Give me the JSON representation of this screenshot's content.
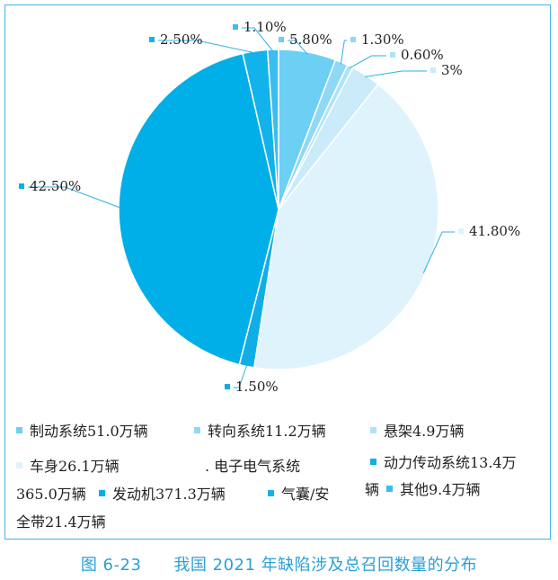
{
  "chart_data": {
    "type": "pie",
    "title": "",
    "slices": [
      {
        "label": "制动系统51.0万辆",
        "value": 5.8,
        "value_label": "5.80%",
        "color": "#6ccff4"
      },
      {
        "label": "转向系统11.2万辆",
        "value": 1.3,
        "value_label": "1.30%",
        "color": "#8fd8f6"
      },
      {
        "label": "悬架4.9万辆",
        "value": 0.6,
        "value_label": "0.60%",
        "color": "#aee3f8"
      },
      {
        "label": "车身26.1万辆",
        "value": 3.0,
        "value_label": "3%",
        "color": "#c9ebfa"
      },
      {
        "label": "电子电气系统365.0万辆",
        "value": 41.8,
        "value_label": "41.80%",
        "color": "#def3fc"
      },
      {
        "label": "动力传动系统13.4万辆",
        "value": 1.5,
        "value_label": "1.50%",
        "color": "#10aee6"
      },
      {
        "label": "发动机371.3万辆",
        "value": 42.5,
        "value_label": "42.50%",
        "color": "#00aee8"
      },
      {
        "label": "气囊/安全带21.4万辆",
        "value": 2.5,
        "value_label": "2.50%",
        "color": "#12b2ea"
      },
      {
        "label": "其他9.4万辆",
        "value": 1.1,
        "value_label": "1.10%",
        "color": "#3bbdee"
      }
    ]
  },
  "legend": {
    "items": [
      {
        "text": "制动系统51.0万辆"
      },
      {
        "text": "转向系统11.2万辆"
      },
      {
        "text": "悬架4.9万辆"
      },
      {
        "text": "车身26.1万辆"
      },
      {
        "text": ". 电子电气系统"
      },
      {
        "text": "动力传动系统13.4万"
      },
      {
        "text": "365.0万辆"
      },
      {
        "text": "发动机371.3万辆"
      },
      {
        "text": "气囊/安"
      },
      {
        "text": "辆"
      },
      {
        "text": "其他9.4万辆"
      },
      {
        "text": "全带21.4万辆"
      }
    ]
  },
  "caption": {
    "figure_number": "图 6-23",
    "title": "我国 2021 年缺陷涉及总召回数量的分布"
  }
}
